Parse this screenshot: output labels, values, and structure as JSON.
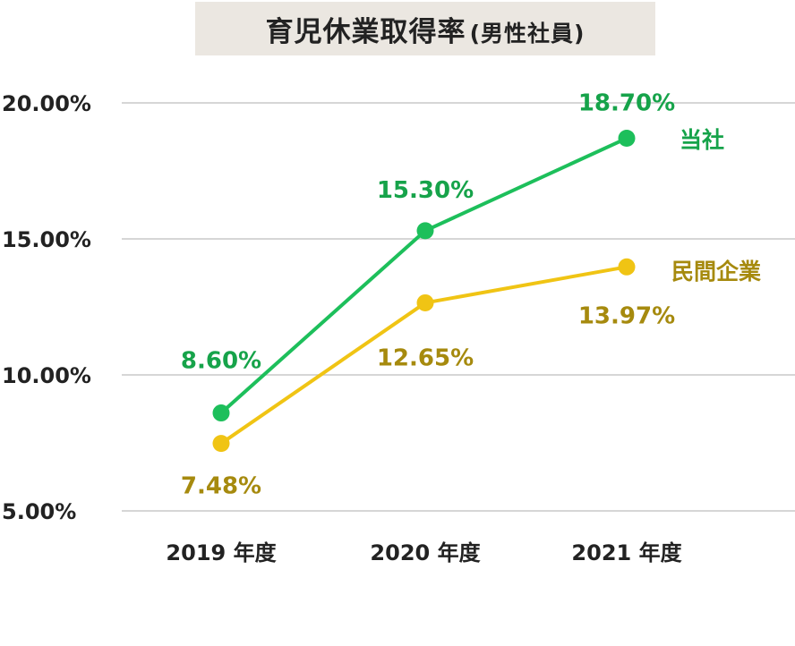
{
  "title_main": "育児休業取得率",
  "title_sub": "(男性社員)",
  "colors": {
    "company": "#1dbf5b",
    "company_text": "#16a34a",
    "private": "#f0c414",
    "private_text": "#a68a0e",
    "grid": "#c8c8c8",
    "title_bg": "#ebe7e1"
  },
  "chart_data": {
    "type": "line",
    "title": "育児休業取得率(男性社員)",
    "categories": [
      "2019 年度",
      "2020 年度",
      "2021 年度"
    ],
    "ylim": [
      5,
      20
    ],
    "yticks": [
      "20.00%",
      "15.00%",
      "10.00%",
      "5.00%"
    ],
    "ytick_values": [
      20,
      15,
      10,
      5
    ],
    "grid": true,
    "series": [
      {
        "name": "当社",
        "values": [
          8.6,
          15.3,
          18.7
        ],
        "labels": [
          "8.60%",
          "15.30%",
          "18.70%"
        ]
      },
      {
        "name": "民間企業",
        "values": [
          7.48,
          12.65,
          13.97
        ],
        "labels": [
          "7.48%",
          "12.65%",
          "13.97%"
        ]
      }
    ]
  }
}
